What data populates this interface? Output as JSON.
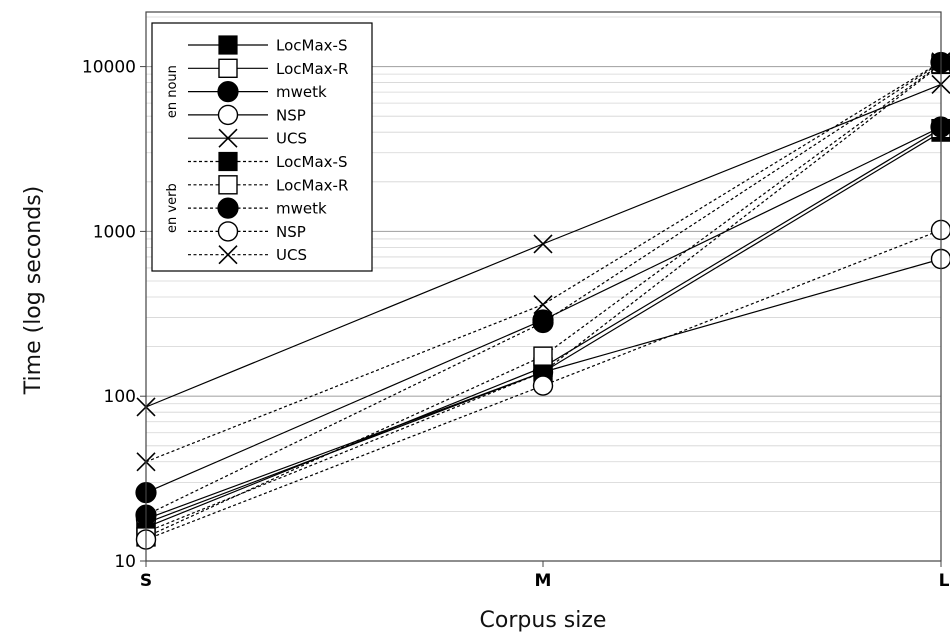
{
  "chart_data": {
    "type": "line",
    "xlabel": "Corpus size",
    "ylabel": "Time (log seconds)",
    "categories": [
      "S",
      "M",
      "L"
    ],
    "yscale": "log",
    "ylim": [
      10,
      20000
    ],
    "yticks": [
      "10",
      "100",
      "1000",
      "10000"
    ],
    "grid": true,
    "legend_position": "top-left",
    "legend_groups": [
      {
        "label": "en noun",
        "line_style": "solid"
      },
      {
        "label": "en verb",
        "line_style": "dotted"
      }
    ],
    "series": [
      {
        "name": "LocMax-S",
        "group": 0,
        "marker": "filled-square",
        "values": [
          17,
          140,
          4000
        ]
      },
      {
        "name": "LocMax-R",
        "group": 0,
        "marker": "open-square",
        "values": [
          16,
          150,
          4200
        ]
      },
      {
        "name": "mwetk",
        "group": 0,
        "marker": "filled-circle",
        "values": [
          26,
          290,
          4300
        ]
      },
      {
        "name": "NSP",
        "group": 0,
        "marker": "open-circle",
        "values": [
          18,
          140,
          680
        ]
      },
      {
        "name": "UCS",
        "group": 0,
        "marker": "cross",
        "values": [
          86,
          840,
          7800
        ]
      },
      {
        "name": "LocMax-S",
        "group": 1,
        "marker": "filled-square",
        "values": [
          15,
          140,
          10300
        ]
      },
      {
        "name": "LocMax-R",
        "group": 1,
        "marker": "open-square",
        "values": [
          14,
          175,
          10400
        ]
      },
      {
        "name": "mwetk",
        "group": 1,
        "marker": "filled-circle",
        "values": [
          19,
          280,
          10600
        ]
      },
      {
        "name": "NSP",
        "group": 1,
        "marker": "open-circle",
        "values": [
          13.5,
          116,
          1020
        ]
      },
      {
        "name": "UCS",
        "group": 1,
        "marker": "cross",
        "values": [
          40,
          360,
          10700
        ]
      }
    ]
  }
}
